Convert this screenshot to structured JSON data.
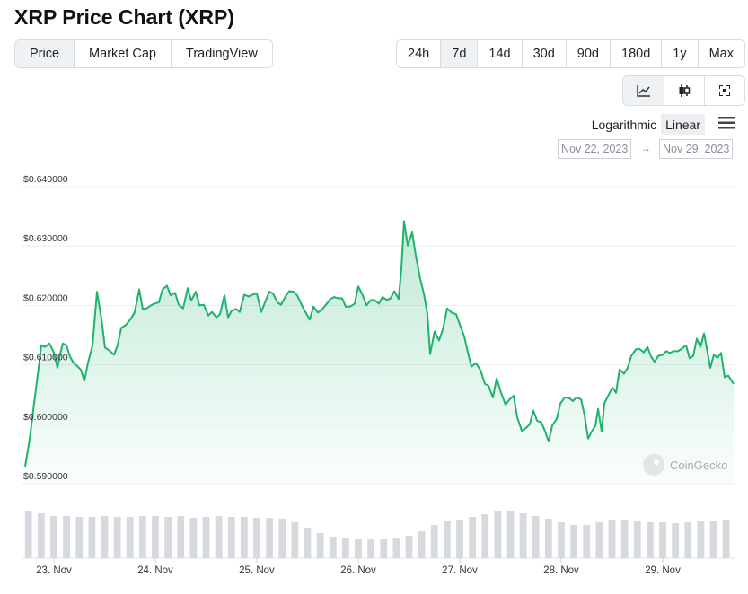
{
  "chart_data": [
    {
      "type": "line",
      "title": "XRP Price Chart (XRP)",
      "color": "#1fb26b",
      "grid": true,
      "xlim": [
        22.717,
        29.699
      ],
      "ylim": [
        0.59,
        0.64
      ],
      "yticks": [
        {
          "value": 0.64,
          "label": "$0.640000"
        },
        {
          "value": 0.63,
          "label": "$0.630000"
        },
        {
          "value": 0.62,
          "label": "$0.620000"
        },
        {
          "value": 0.61,
          "label": "$0.610000"
        },
        {
          "value": 0.6,
          "label": "$0.600000"
        },
        {
          "value": 0.59,
          "label": "$0.590000"
        }
      ],
      "xticks": [
        {
          "value": 23,
          "label": "23. Nov"
        },
        {
          "value": 24,
          "label": "24. Nov"
        },
        {
          "value": 25,
          "label": "25. Nov"
        },
        {
          "value": 26,
          "label": "26. Nov"
        },
        {
          "value": 27,
          "label": "27. Nov"
        },
        {
          "value": 28,
          "label": "28. Nov"
        },
        {
          "value": 29,
          "label": "29. Nov"
        }
      ],
      "x": [
        22.717,
        22.761,
        22.805,
        22.85,
        22.876,
        22.912,
        22.956,
        23.0,
        23.035,
        23.062,
        23.088,
        23.124,
        23.159,
        23.195,
        23.23,
        23.265,
        23.301,
        23.336,
        23.381,
        23.425,
        23.469,
        23.504,
        23.549,
        23.593,
        23.628,
        23.664,
        23.708,
        23.752,
        23.796,
        23.841,
        23.876,
        23.912,
        23.956,
        23.991,
        24.035,
        24.071,
        24.115,
        24.15,
        24.195,
        24.23,
        24.274,
        24.319,
        24.354,
        24.398,
        24.434,
        24.478,
        24.522,
        24.558,
        24.602,
        24.637,
        24.681,
        24.717,
        24.752,
        24.796,
        24.832,
        24.876,
        24.92,
        24.956,
        25.0,
        25.044,
        25.08,
        25.124,
        25.159,
        25.204,
        25.239,
        25.283,
        25.319,
        25.363,
        25.398,
        25.442,
        25.478,
        25.522,
        25.558,
        25.602,
        25.637,
        25.681,
        25.726,
        25.761,
        25.805,
        25.841,
        25.876,
        25.92,
        25.965,
        26.0,
        26.044,
        26.08,
        26.124,
        26.159,
        26.204,
        26.239,
        26.283,
        26.319,
        26.354,
        26.398,
        26.425,
        26.451,
        26.487,
        26.531,
        26.566,
        26.611,
        26.646,
        26.681,
        26.708,
        26.752,
        26.796,
        26.832,
        26.876,
        26.92,
        26.965,
        27.0,
        27.044,
        27.08,
        27.115,
        27.159,
        27.204,
        27.248,
        27.283,
        27.327,
        27.363,
        27.407,
        27.451,
        27.487,
        27.531,
        27.566,
        27.611,
        27.655,
        27.69,
        27.726,
        27.761,
        27.805,
        27.841,
        27.876,
        27.912,
        27.956,
        27.991,
        28.035,
        28.08,
        28.115,
        28.15,
        28.195,
        28.23,
        28.265,
        28.301,
        28.336,
        28.363,
        28.398,
        28.425,
        28.469,
        28.504,
        28.54,
        28.575,
        28.619,
        28.655,
        28.69,
        28.735,
        28.77,
        28.814,
        28.85,
        28.885,
        28.92,
        28.956,
        29.0,
        29.035,
        29.071,
        29.106,
        29.15,
        29.186,
        29.23,
        29.265,
        29.301,
        29.336,
        29.372,
        29.407,
        29.442,
        29.469,
        29.504,
        29.54,
        29.575,
        29.611,
        29.646,
        29.699
      ],
      "values": [
        0.5929,
        0.5974,
        0.6035,
        0.6095,
        0.6133,
        0.613,
        0.6136,
        0.6121,
        0.6095,
        0.6118,
        0.6136,
        0.6133,
        0.6114,
        0.6103,
        0.6098,
        0.6092,
        0.6073,
        0.6103,
        0.6133,
        0.6223,
        0.6177,
        0.6129,
        0.6124,
        0.6117,
        0.6133,
        0.6162,
        0.6167,
        0.6176,
        0.6188,
        0.6227,
        0.6194,
        0.6195,
        0.62,
        0.6203,
        0.6205,
        0.6227,
        0.6233,
        0.6217,
        0.6221,
        0.6201,
        0.6195,
        0.6229,
        0.6208,
        0.6223,
        0.62,
        0.6201,
        0.6183,
        0.6189,
        0.618,
        0.6185,
        0.6217,
        0.618,
        0.6191,
        0.6194,
        0.6189,
        0.6218,
        0.6215,
        0.6218,
        0.622,
        0.6189,
        0.6205,
        0.6223,
        0.622,
        0.6205,
        0.6201,
        0.6215,
        0.6224,
        0.6223,
        0.6217,
        0.6201,
        0.6189,
        0.6176,
        0.6198,
        0.6188,
        0.6192,
        0.6201,
        0.6211,
        0.6214,
        0.6212,
        0.6212,
        0.6198,
        0.6198,
        0.6203,
        0.6232,
        0.6217,
        0.62,
        0.6209,
        0.6209,
        0.6203,
        0.6214,
        0.6209,
        0.6212,
        0.6224,
        0.6211,
        0.6262,
        0.6342,
        0.6301,
        0.6323,
        0.6285,
        0.6244,
        0.622,
        0.6186,
        0.6118,
        0.6156,
        0.6141,
        0.6159,
        0.6195,
        0.6188,
        0.6185,
        0.6168,
        0.6148,
        0.6121,
        0.6097,
        0.6103,
        0.6091,
        0.6068,
        0.6065,
        0.6045,
        0.6077,
        0.6053,
        0.6033,
        0.6041,
        0.6048,
        0.6012,
        0.5989,
        0.5994,
        0.6,
        0.6023,
        0.6006,
        0.6003,
        0.5988,
        0.5971,
        0.5998,
        0.6009,
        0.6035,
        0.6045,
        0.6044,
        0.6039,
        0.6045,
        0.6042,
        0.6015,
        0.5976,
        0.5988,
        0.5997,
        0.6026,
        0.5988,
        0.6035,
        0.605,
        0.6062,
        0.6053,
        0.6092,
        0.6085,
        0.6095,
        0.6115,
        0.6126,
        0.6127,
        0.6121,
        0.613,
        0.6114,
        0.6105,
        0.6115,
        0.6117,
        0.6123,
        0.612,
        0.6123,
        0.6123,
        0.6127,
        0.6133,
        0.6111,
        0.6115,
        0.6144,
        0.613,
        0.6153,
        0.6121,
        0.6095,
        0.6117,
        0.6112,
        0.612,
        0.6079,
        0.6082,
        0.6068
      ]
    },
    {
      "type": "bar",
      "color": "#d6d9dd",
      "ylim": [
        0,
        60
      ],
      "x": [
        22.75,
        22.875,
        23.0,
        23.125,
        23.25,
        23.375,
        23.5,
        23.625,
        23.75,
        23.875,
        24.0,
        24.125,
        24.25,
        24.375,
        24.5,
        24.625,
        24.75,
        24.875,
        25.0,
        25.125,
        25.25,
        25.375,
        25.5,
        25.625,
        25.75,
        25.875,
        26.0,
        26.125,
        26.25,
        26.375,
        26.5,
        26.625,
        26.75,
        26.875,
        27.0,
        27.125,
        27.25,
        27.375,
        27.5,
        27.625,
        27.75,
        27.875,
        28.0,
        28.125,
        28.25,
        28.375,
        28.5,
        28.625,
        28.75,
        28.875,
        29.0,
        29.125,
        29.25,
        29.375,
        29.5,
        29.625
      ],
      "values": [
        52,
        50,
        47,
        47,
        46,
        46,
        47,
        46,
        46,
        47,
        47,
        46,
        47,
        45,
        46,
        47,
        46,
        46,
        45,
        45,
        44,
        40,
        33,
        28,
        24,
        22,
        21,
        21,
        21,
        22,
        25,
        30,
        37,
        41,
        43,
        46,
        49,
        52,
        52,
        50,
        47,
        44,
        40,
        37,
        37,
        40,
        42,
        42,
        41,
        40,
        40,
        39,
        40,
        41,
        41,
        42
      ]
    }
  ],
  "tabs": [
    {
      "label": "Price",
      "active": true
    },
    {
      "label": "Market Cap",
      "active": false
    },
    {
      "label": "TradingView",
      "active": false
    }
  ],
  "ranges": [
    {
      "label": "24h",
      "active": false
    },
    {
      "label": "7d",
      "active": true
    },
    {
      "label": "14d",
      "active": false
    },
    {
      "label": "30d",
      "active": false
    },
    {
      "label": "90d",
      "active": false
    },
    {
      "label": "180d",
      "active": false
    },
    {
      "label": "1y",
      "active": false
    },
    {
      "label": "Max",
      "active": false
    }
  ],
  "scales": [
    {
      "label": "Logarithmic",
      "active": false
    },
    {
      "label": "Linear",
      "active": true
    }
  ],
  "date_from": "Nov 22, 2023",
  "date_separator": "→",
  "date_to": "Nov 29, 2023",
  "watermark": "CoinGecko"
}
